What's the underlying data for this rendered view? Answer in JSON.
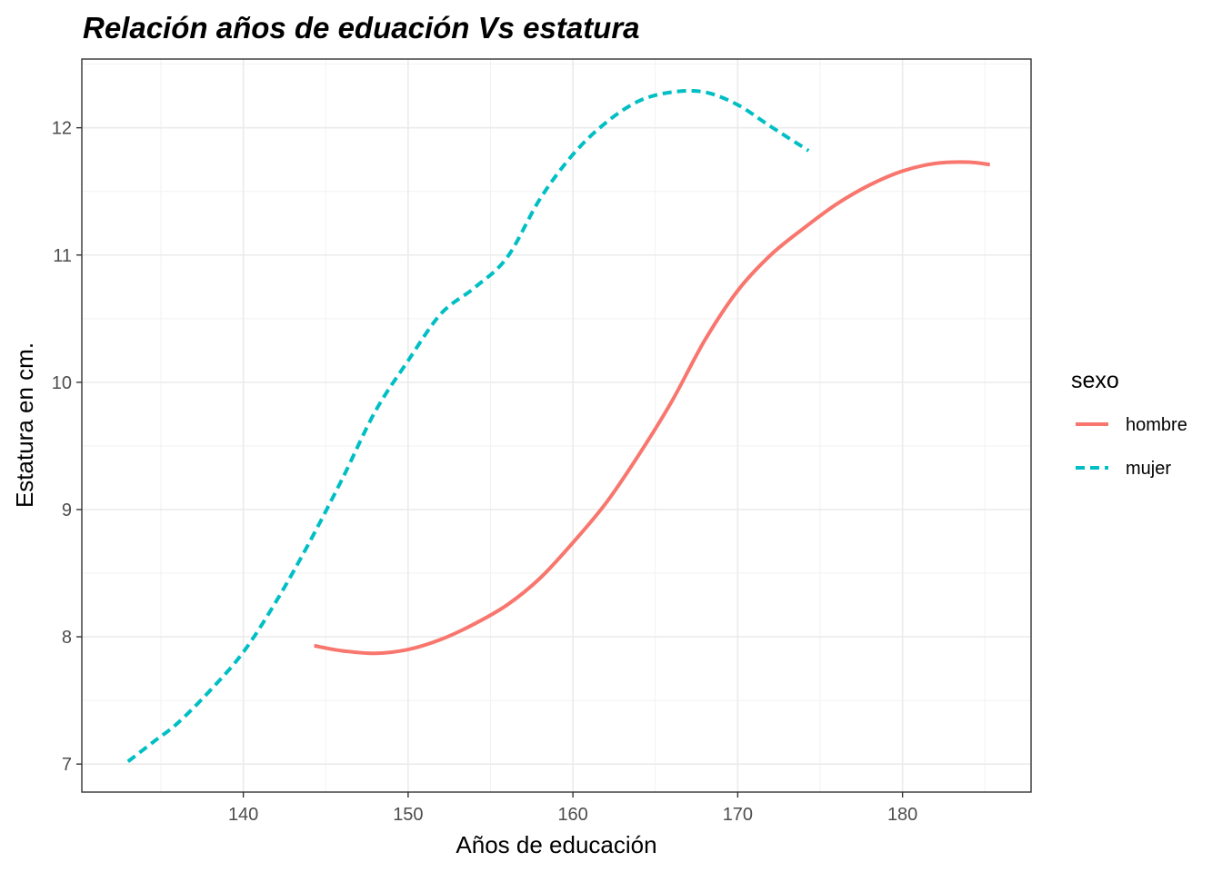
{
  "chart_data": {
    "type": "line",
    "title": "Relación años de eduación Vs estatura",
    "xlabel": "Años de educación",
    "ylabel": "Estatura en cm.",
    "xlim": [
      130.2,
      187.8
    ],
    "ylim": [
      6.78,
      12.54
    ],
    "x_ticks": [
      140,
      150,
      160,
      170,
      180
    ],
    "y_ticks": [
      7,
      8,
      9,
      10,
      11,
      12
    ],
    "x_minor": [
      135,
      145,
      155,
      165,
      175,
      185
    ],
    "y_minor": [
      7.5,
      8.5,
      9.5,
      10.5,
      11.5,
      12.5
    ],
    "x_tick_labels": [
      "140",
      "150",
      "160",
      "170",
      "180"
    ],
    "y_tick_labels": [
      "7",
      "8",
      "9",
      "10",
      "11",
      "12"
    ],
    "grid": true,
    "legend": {
      "title": "sexo",
      "placement": "right",
      "entries": [
        "hombre",
        "mujer"
      ]
    },
    "series": [
      {
        "name": "hombre",
        "color": "#F8766D",
        "dash": "solid",
        "x": [
          144.3,
          146,
          148,
          150,
          152,
          154,
          156,
          158,
          160,
          162,
          164,
          166,
          168,
          170,
          172,
          174,
          176,
          178,
          180,
          182,
          184,
          185.3
        ],
        "y": [
          7.93,
          7.89,
          7.87,
          7.9,
          7.98,
          8.1,
          8.25,
          8.46,
          8.74,
          9.05,
          9.43,
          9.85,
          10.33,
          10.72,
          11.0,
          11.21,
          11.4,
          11.55,
          11.66,
          11.72,
          11.73,
          11.71
        ]
      },
      {
        "name": "mujer",
        "color": "#00BFC4",
        "dash": "dashed",
        "x": [
          133.0,
          134.5,
          136,
          138,
          140,
          142,
          144,
          146,
          148,
          150,
          152,
          154,
          156,
          158,
          160,
          162,
          164,
          166,
          168,
          170,
          172,
          174.3
        ],
        "y": [
          7.02,
          7.17,
          7.32,
          7.58,
          7.88,
          8.28,
          8.74,
          9.24,
          9.77,
          10.17,
          10.54,
          10.74,
          10.98,
          11.44,
          11.79,
          12.04,
          12.21,
          12.28,
          12.28,
          12.18,
          12.01,
          11.82
        ]
      }
    ]
  }
}
